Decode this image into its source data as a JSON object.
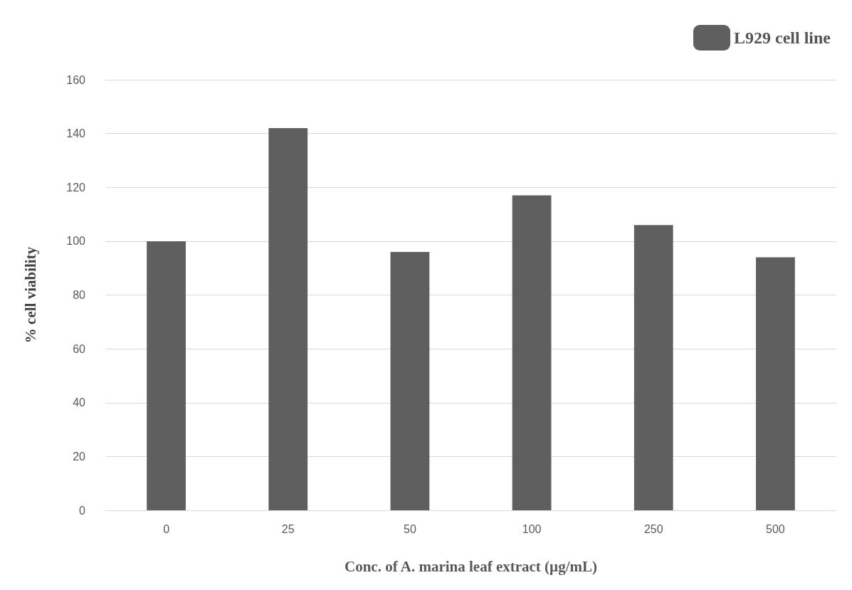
{
  "chart_data": {
    "type": "bar",
    "xlabel": "Conc. of A. marina leaf extract (µg/mL)",
    "ylabel": "% cell viability",
    "categories": [
      "0",
      "25",
      "50",
      "100",
      "250",
      "500"
    ],
    "series": [
      {
        "name": "L929 cell line",
        "color": "#5f5f5f",
        "values": [
          100,
          142,
          96,
          117,
          106,
          94
        ]
      }
    ],
    "ylim": [
      0,
      160
    ],
    "yticks": [
      0,
      20,
      40,
      60,
      80,
      100,
      120,
      140,
      160
    ],
    "grid": "y",
    "legend": "top right"
  }
}
